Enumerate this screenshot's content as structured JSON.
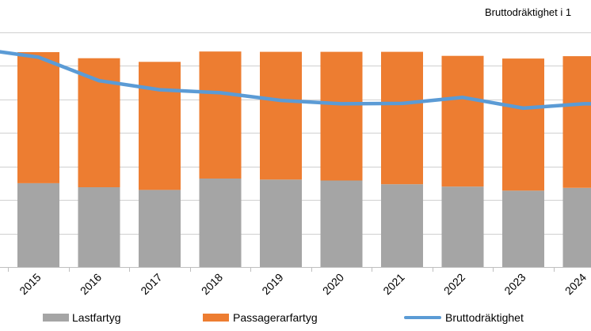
{
  "chart_data": {
    "type": "bar",
    "stacked": true,
    "categories": [
      "2015",
      "2016",
      "2017",
      "2018",
      "2019",
      "2020",
      "2021",
      "2022",
      "2023",
      "2024"
    ],
    "series": [
      {
        "name": "Lastfartyg",
        "type": "bar",
        "color": "#a5a5a5",
        "values": [
          2.5,
          2.38,
          2.3,
          2.64,
          2.61,
          2.58,
          2.47,
          2.4,
          2.28,
          2.36
        ]
      },
      {
        "name": "Passagerarfartyg",
        "type": "bar",
        "color": "#ed7d31",
        "values": [
          3.91,
          3.85,
          3.82,
          3.79,
          3.81,
          3.84,
          3.95,
          3.9,
          3.94,
          3.93
        ]
      },
      {
        "name": "Bruttodräktighet",
        "type": "line",
        "color": "#5b9bd5",
        "values": [
          6.26,
          5.56,
          5.29,
          5.2,
          4.97,
          4.87,
          4.88,
          5.06,
          4.74,
          4.87
        ]
      }
    ],
    "line_left_edge_value": 6.42,
    "ylabel": "Bruttodräktighet i 1",
    "ylim": [
      0,
      7.0
    ],
    "y_gridlines": [
      0,
      1,
      2,
      3,
      4,
      5,
      6,
      7
    ],
    "grid": true,
    "legend": "bottom"
  }
}
